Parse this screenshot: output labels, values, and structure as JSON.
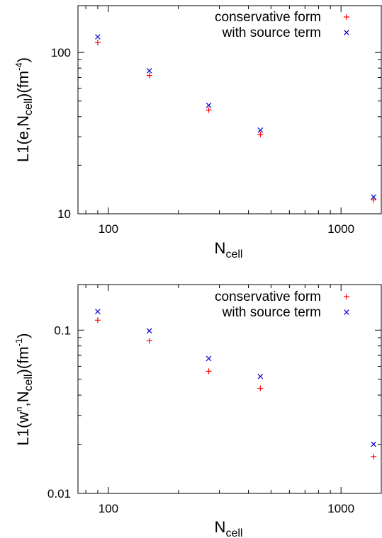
{
  "chart_data": [
    {
      "type": "scatter",
      "x_scale": "log",
      "y_scale": "log",
      "xlim": [
        74,
        1500
      ],
      "ylim": [
        10,
        195
      ],
      "xlabel": {
        "main": "N",
        "sub": "cell"
      },
      "ylabel": {
        "p1": "L1(e,N",
        "sub": "cell",
        "p2": ")(fm",
        "sup": "-4",
        "p3": ")"
      },
      "x_ticks": [
        100,
        1000
      ],
      "x_tick_labels": [
        "100",
        "1000"
      ],
      "y_ticks": [
        10,
        100
      ],
      "y_tick_labels": [
        "10",
        "100"
      ],
      "grid": false,
      "legend_position": "top-right",
      "series": [
        {
          "name": "conservative form",
          "marker": "+",
          "color": "#ff0000",
          "x": [
            90,
            150,
            270,
            450,
            1380
          ],
          "y": [
            115,
            72,
            44,
            31,
            12.2
          ]
        },
        {
          "name": "with source term",
          "marker": "x",
          "color": "#0000cc",
          "x": [
            90,
            150,
            270,
            450,
            1380
          ],
          "y": [
            125,
            77,
            47,
            33,
            12.7
          ]
        }
      ]
    },
    {
      "type": "scatter",
      "x_scale": "log",
      "y_scale": "log",
      "xlim": [
        74,
        1500
      ],
      "ylim": [
        0.01,
        0.19
      ],
      "xlabel": {
        "main": "N",
        "sub": "cell"
      },
      "ylabel": {
        "p1": "L1(w",
        "sup1": "n",
        "p2": ",N",
        "sub": "cell",
        "p3": ")(fm",
        "sup": "-1",
        "p4": ")"
      },
      "x_ticks": [
        100,
        1000
      ],
      "x_tick_labels": [
        "100",
        "1000"
      ],
      "y_ticks": [
        0.01,
        0.1
      ],
      "y_tick_labels": [
        "0.01",
        "0.1"
      ],
      "grid": false,
      "legend_position": "top-right",
      "series": [
        {
          "name": "conservative form",
          "marker": "+",
          "color": "#ff0000",
          "x": [
            90,
            150,
            270,
            450,
            1380
          ],
          "y": [
            0.115,
            0.086,
            0.056,
            0.044,
            0.0168
          ]
        },
        {
          "name": "with source term",
          "marker": "x",
          "color": "#0000cc",
          "x": [
            90,
            150,
            270,
            450,
            1380
          ],
          "y": [
            0.13,
            0.099,
            0.067,
            0.052,
            0.02
          ]
        }
      ]
    }
  ]
}
